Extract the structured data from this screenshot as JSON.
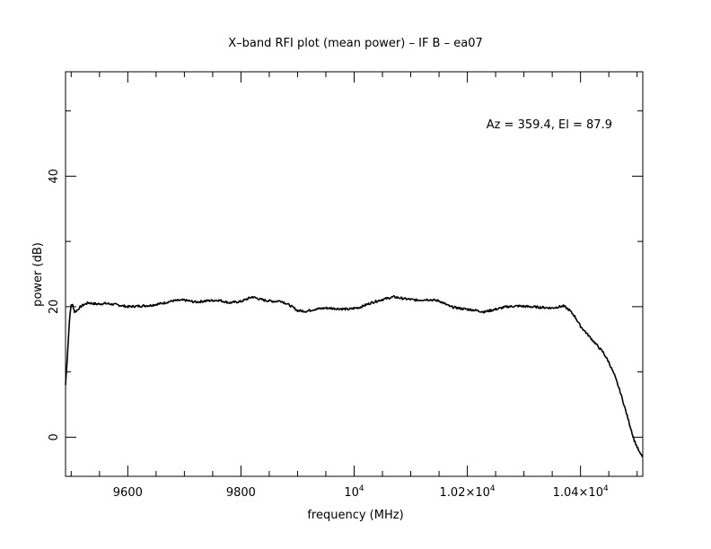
{
  "chart_data": {
    "type": "line",
    "title": "X–band RFI plot (mean power) – IF B – ea07",
    "xlabel": "frequency (MHz)",
    "ylabel": "power (dB)",
    "annotation": "Az = 359.4, El = 87.9",
    "xlim": [
      9490,
      10510
    ],
    "ylim": [
      -6,
      56
    ],
    "x_ticks": [
      {
        "value": 9600,
        "label": "9600"
      },
      {
        "value": 9800,
        "label": "9800"
      },
      {
        "value": 10000,
        "label": "10",
        "sup": "4"
      },
      {
        "value": 10200,
        "label": "1.02×10",
        "sup": "4"
      },
      {
        "value": 10400,
        "label": "1.04×10",
        "sup": "4"
      }
    ],
    "y_ticks": [
      {
        "value": 0,
        "label": "0"
      },
      {
        "value": 20,
        "label": "20"
      },
      {
        "value": 40,
        "label": "40"
      }
    ],
    "x_minor_step": 50,
    "y_minor_step": 10,
    "grid": false,
    "line_color": "#000000",
    "series": [
      {
        "x": [
          9490,
          9493,
          9497,
          9500,
          9503,
          9506,
          9510,
          9514,
          9520,
          9530,
          9545,
          9560,
          9580,
          9600,
          9620,
          9640,
          9660,
          9680,
          9700,
          9720,
          9740,
          9760,
          9780,
          9800,
          9820,
          9840,
          9860,
          9870,
          9880,
          9890,
          9900,
          9915,
          9930,
          9950,
          9970,
          9990,
          10010,
          10030,
          10050,
          10070,
          10090,
          10110,
          10130,
          10150,
          10170,
          10190,
          10210,
          10230,
          10250,
          10270,
          10290,
          10310,
          10330,
          10350,
          10370,
          10380,
          10390,
          10400,
          10410,
          10420,
          10430,
          10440,
          10450,
          10460,
          10470,
          10480,
          10490,
          10495,
          10500,
          10505,
          10510
        ],
        "y": [
          8,
          12,
          18,
          20.3,
          20.2,
          19.2,
          19.4,
          19.8,
          20.2,
          20.6,
          20.4,
          20.5,
          20.3,
          20.0,
          20.1,
          20.2,
          20.5,
          20.9,
          21.0,
          20.7,
          20.9,
          21.0,
          20.6,
          20.8,
          21.5,
          21.0,
          20.8,
          20.9,
          20.5,
          20.0,
          19.4,
          19.3,
          19.6,
          19.8,
          19.7,
          19.6,
          19.9,
          20.6,
          21.1,
          21.5,
          21.2,
          21.0,
          21.1,
          20.9,
          20.0,
          19.7,
          19.5,
          19.2,
          19.6,
          20.0,
          20.1,
          20.0,
          19.9,
          19.8,
          20.1,
          19.5,
          18.5,
          17.0,
          16.0,
          15.0,
          14.0,
          13.0,
          11.5,
          9.5,
          7.0,
          4.0,
          1.0,
          -0.5,
          -1.5,
          -2.5,
          -3.0
        ]
      }
    ]
  }
}
